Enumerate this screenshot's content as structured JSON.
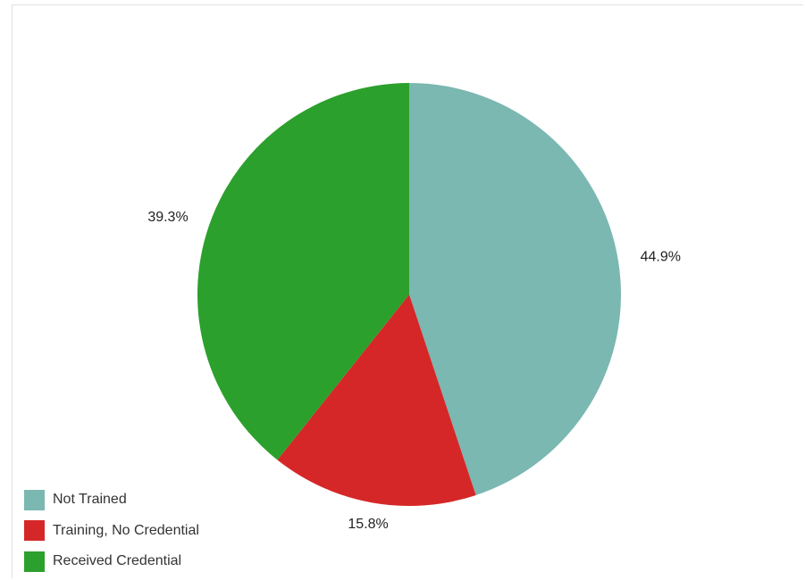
{
  "chart_data": {
    "type": "pie",
    "categories": [
      "Not Trained",
      "Training, No Credential",
      "Received Credential"
    ],
    "values": [
      44.9,
      15.8,
      39.3
    ],
    "labels": [
      "44.9%",
      "15.8%",
      "39.3%"
    ],
    "colors": [
      "#7ab8b1",
      "#d62728",
      "#2ca02c"
    ],
    "title": "",
    "legend_position": "bottom-left",
    "start_angle": "12 o'clock",
    "direction": "clockwise"
  }
}
